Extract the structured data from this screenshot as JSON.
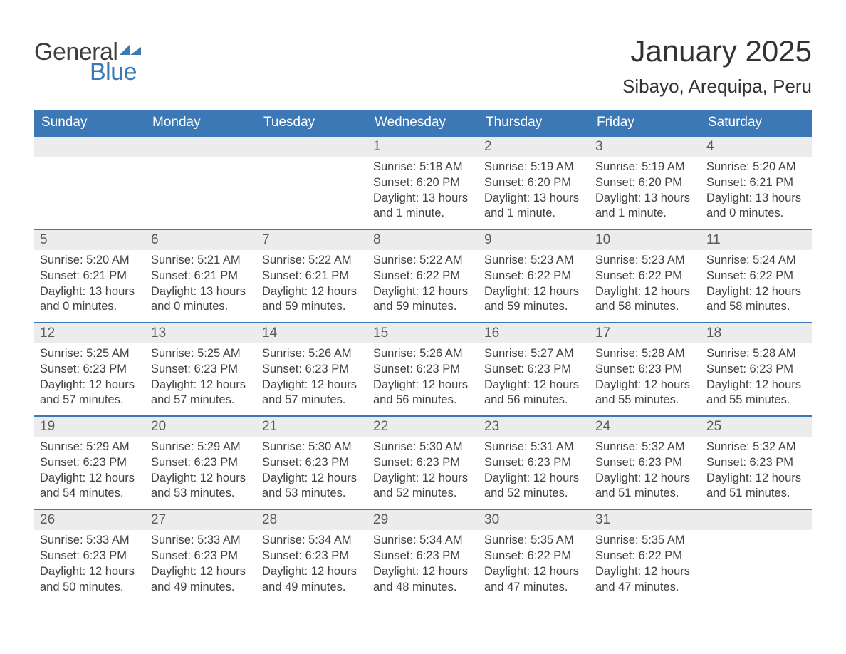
{
  "brand": {
    "general": "General",
    "blue": "Blue",
    "flag_color": "#3b78b5"
  },
  "header": {
    "month_title": "January 2025",
    "location": "Sibayo, Arequipa, Peru"
  },
  "colors": {
    "header_bg": "#3b78b5",
    "daynum_bg": "#ececec",
    "text": "#414141",
    "weekday_text": "#ffffff"
  },
  "weekdays": [
    "Sunday",
    "Monday",
    "Tuesday",
    "Wednesday",
    "Thursday",
    "Friday",
    "Saturday"
  ],
  "weeks": [
    [
      null,
      null,
      null,
      {
        "n": "1",
        "sunrise": "5:18 AM",
        "sunset": "6:20 PM",
        "daylight": "13 hours and 1 minute."
      },
      {
        "n": "2",
        "sunrise": "5:19 AM",
        "sunset": "6:20 PM",
        "daylight": "13 hours and 1 minute."
      },
      {
        "n": "3",
        "sunrise": "5:19 AM",
        "sunset": "6:20 PM",
        "daylight": "13 hours and 1 minute."
      },
      {
        "n": "4",
        "sunrise": "5:20 AM",
        "sunset": "6:21 PM",
        "daylight": "13 hours and 0 minutes."
      }
    ],
    [
      {
        "n": "5",
        "sunrise": "5:20 AM",
        "sunset": "6:21 PM",
        "daylight": "13 hours and 0 minutes."
      },
      {
        "n": "6",
        "sunrise": "5:21 AM",
        "sunset": "6:21 PM",
        "daylight": "13 hours and 0 minutes."
      },
      {
        "n": "7",
        "sunrise": "5:22 AM",
        "sunset": "6:21 PM",
        "daylight": "12 hours and 59 minutes."
      },
      {
        "n": "8",
        "sunrise": "5:22 AM",
        "sunset": "6:22 PM",
        "daylight": "12 hours and 59 minutes."
      },
      {
        "n": "9",
        "sunrise": "5:23 AM",
        "sunset": "6:22 PM",
        "daylight": "12 hours and 59 minutes."
      },
      {
        "n": "10",
        "sunrise": "5:23 AM",
        "sunset": "6:22 PM",
        "daylight": "12 hours and 58 minutes."
      },
      {
        "n": "11",
        "sunrise": "5:24 AM",
        "sunset": "6:22 PM",
        "daylight": "12 hours and 58 minutes."
      }
    ],
    [
      {
        "n": "12",
        "sunrise": "5:25 AM",
        "sunset": "6:23 PM",
        "daylight": "12 hours and 57 minutes."
      },
      {
        "n": "13",
        "sunrise": "5:25 AM",
        "sunset": "6:23 PM",
        "daylight": "12 hours and 57 minutes."
      },
      {
        "n": "14",
        "sunrise": "5:26 AM",
        "sunset": "6:23 PM",
        "daylight": "12 hours and 57 minutes."
      },
      {
        "n": "15",
        "sunrise": "5:26 AM",
        "sunset": "6:23 PM",
        "daylight": "12 hours and 56 minutes."
      },
      {
        "n": "16",
        "sunrise": "5:27 AM",
        "sunset": "6:23 PM",
        "daylight": "12 hours and 56 minutes."
      },
      {
        "n": "17",
        "sunrise": "5:28 AM",
        "sunset": "6:23 PM",
        "daylight": "12 hours and 55 minutes."
      },
      {
        "n": "18",
        "sunrise": "5:28 AM",
        "sunset": "6:23 PM",
        "daylight": "12 hours and 55 minutes."
      }
    ],
    [
      {
        "n": "19",
        "sunrise": "5:29 AM",
        "sunset": "6:23 PM",
        "daylight": "12 hours and 54 minutes."
      },
      {
        "n": "20",
        "sunrise": "5:29 AM",
        "sunset": "6:23 PM",
        "daylight": "12 hours and 53 minutes."
      },
      {
        "n": "21",
        "sunrise": "5:30 AM",
        "sunset": "6:23 PM",
        "daylight": "12 hours and 53 minutes."
      },
      {
        "n": "22",
        "sunrise": "5:30 AM",
        "sunset": "6:23 PM",
        "daylight": "12 hours and 52 minutes."
      },
      {
        "n": "23",
        "sunrise": "5:31 AM",
        "sunset": "6:23 PM",
        "daylight": "12 hours and 52 minutes."
      },
      {
        "n": "24",
        "sunrise": "5:32 AM",
        "sunset": "6:23 PM",
        "daylight": "12 hours and 51 minutes."
      },
      {
        "n": "25",
        "sunrise": "5:32 AM",
        "sunset": "6:23 PM",
        "daylight": "12 hours and 51 minutes."
      }
    ],
    [
      {
        "n": "26",
        "sunrise": "5:33 AM",
        "sunset": "6:23 PM",
        "daylight": "12 hours and 50 minutes."
      },
      {
        "n": "27",
        "sunrise": "5:33 AM",
        "sunset": "6:23 PM",
        "daylight": "12 hours and 49 minutes."
      },
      {
        "n": "28",
        "sunrise": "5:34 AM",
        "sunset": "6:23 PM",
        "daylight": "12 hours and 49 minutes."
      },
      {
        "n": "29",
        "sunrise": "5:34 AM",
        "sunset": "6:23 PM",
        "daylight": "12 hours and 48 minutes."
      },
      {
        "n": "30",
        "sunrise": "5:35 AM",
        "sunset": "6:22 PM",
        "daylight": "12 hours and 47 minutes."
      },
      {
        "n": "31",
        "sunrise": "5:35 AM",
        "sunset": "6:22 PM",
        "daylight": "12 hours and 47 minutes."
      },
      null
    ]
  ],
  "labels": {
    "sunrise_prefix": "Sunrise: ",
    "sunset_prefix": "Sunset: ",
    "daylight_prefix": "Daylight: "
  }
}
